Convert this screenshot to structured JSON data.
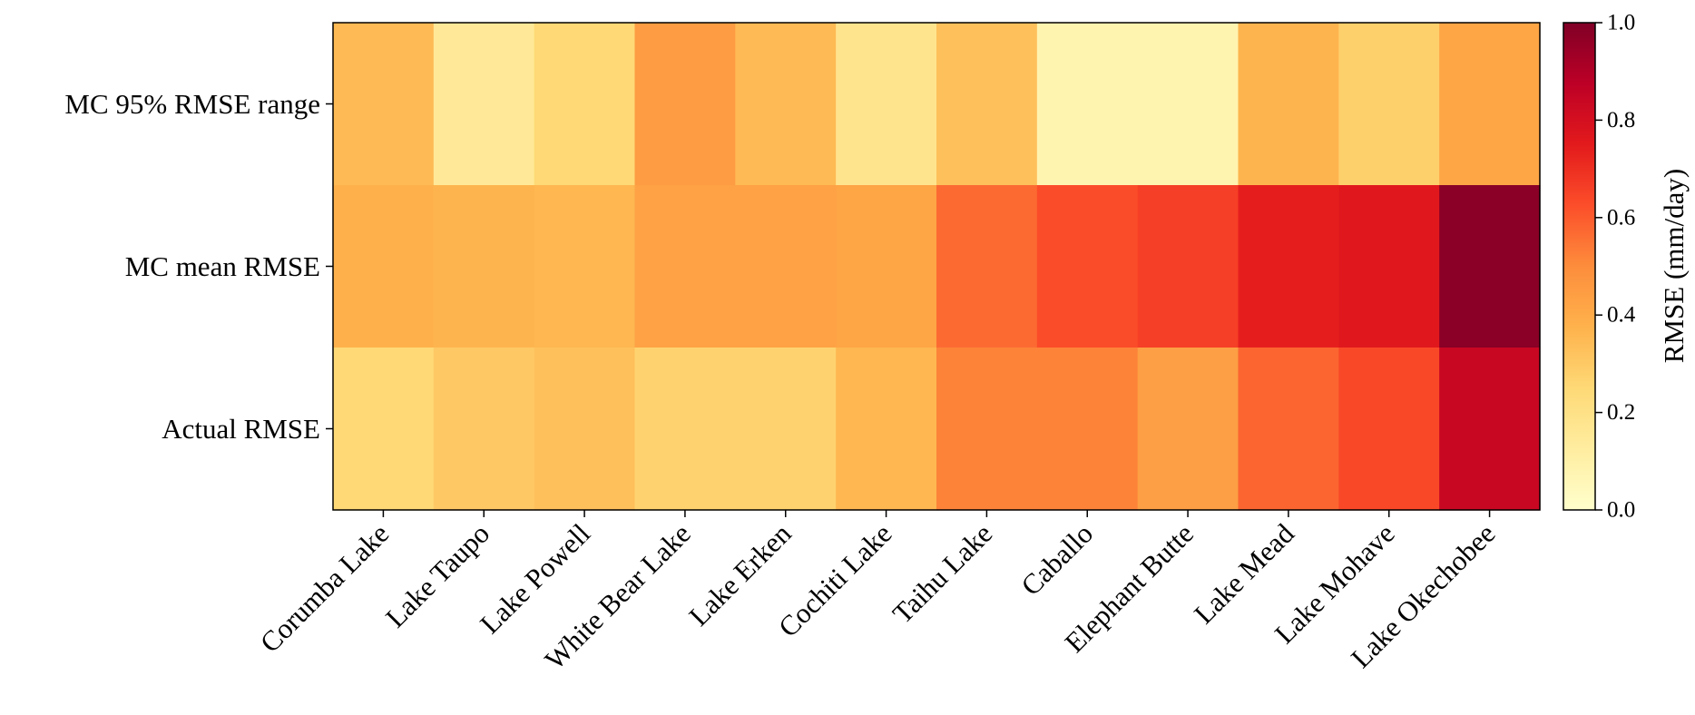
{
  "chart_data": {
    "type": "heatmap",
    "title": "",
    "xlabel": "",
    "ylabel": "",
    "x_categories": [
      "Corumba Lake",
      "Lake Taupo",
      "Lake Powell",
      "White Bear Lake",
      "Lake Erken",
      "Cochiti Lake",
      "Taihu Lake",
      "Caballo",
      "Elephant Butte",
      "Lake Mead",
      "Lake Mohave",
      "Lake Okechobee"
    ],
    "y_categories": [
      "MC 95% RMSE range",
      "MC mean RMSE",
      "Actual RMSE"
    ],
    "values": [
      [
        0.35,
        0.15,
        0.25,
        0.45,
        0.35,
        0.18,
        0.33,
        0.08,
        0.08,
        0.37,
        0.28,
        0.42
      ],
      [
        0.38,
        0.37,
        0.36,
        0.43,
        0.43,
        0.42,
        0.57,
        0.63,
        0.66,
        0.74,
        0.76,
        0.98
      ],
      [
        0.25,
        0.3,
        0.33,
        0.27,
        0.27,
        0.36,
        0.52,
        0.52,
        0.44,
        0.58,
        0.64,
        0.84
      ]
    ],
    "colormap": "YlOrRd",
    "colorbar": {
      "label": "RMSE (mm/day)",
      "range": [
        0.0,
        1.0
      ],
      "ticks": [
        "0.0",
        "0.2",
        "0.4",
        "0.6",
        "0.8",
        "1.0"
      ]
    }
  }
}
